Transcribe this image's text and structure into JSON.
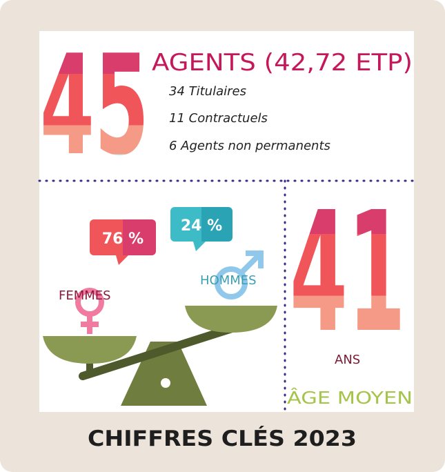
{
  "headcount": {
    "number": "45",
    "label": "AGENTS (42,72 ETP)",
    "details": [
      "34 Titulaires",
      "11 Contractuels",
      "6 Agents non permanents"
    ]
  },
  "gender": {
    "women": {
      "percent": "76 %",
      "label": "FEMMES"
    },
    "men": {
      "percent": "24 %",
      "label": "HOMMES"
    }
  },
  "age": {
    "number": "41",
    "unit": "ANS",
    "label": "ÂGE MOYEN"
  },
  "footer": {
    "title": "CHIFFRES CLÉS 2023"
  }
}
